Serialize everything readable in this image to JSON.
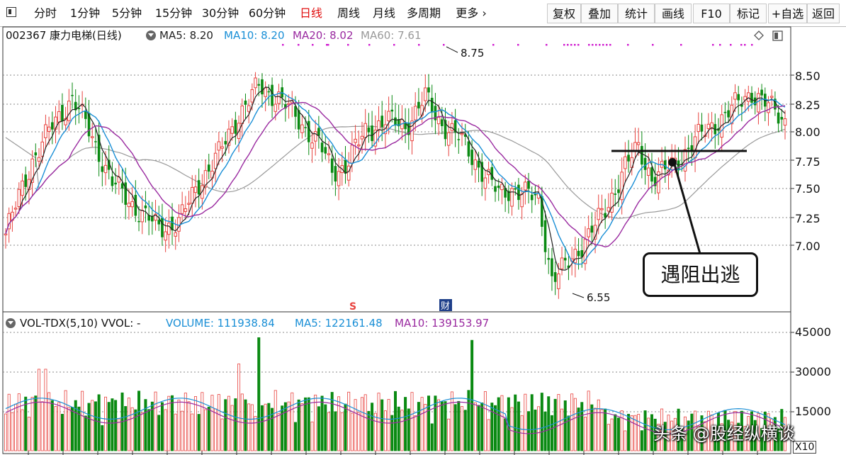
{
  "toolbar": {
    "periods": [
      "分时",
      "1分钟",
      "5分钟",
      "15分钟",
      "30分钟",
      "60分钟",
      "日线",
      "周线",
      "月线",
      "多周期",
      "更多"
    ],
    "active_period": "日线",
    "tools": [
      "复权",
      "叠加",
      "统计",
      "画线",
      "F10",
      "标记",
      "+自选",
      "返回"
    ]
  },
  "stock": {
    "code_name": "002367 康力电梯(日线)",
    "ma5": "MA5: 8.20",
    "ma10": "MA10: 8.20",
    "ma20": "MA20: 8.02",
    "ma60": "MA60: 7.61"
  },
  "volume_info": {
    "indicator": "VOL-TDX(5,10) VVOL: -",
    "volume": "VOLUME: 111938.84",
    "ma5": "MA5: 122161.48",
    "ma10": "MA10: 139153.97"
  },
  "price_axis": [
    "8.50",
    "8.25",
    "8.00",
    "7.75",
    "7.50",
    "7.25",
    "7.00"
  ],
  "volume_axis": [
    "45000",
    "30000",
    "15000"
  ],
  "volume_unit": "X10",
  "markers": {
    "high": "8.75",
    "low": "6.55",
    "s_mark": "S",
    "cai_mark": "财"
  },
  "annotation": "遇阻出逃",
  "watermark": "头条 @股经纵横谈",
  "colors": {
    "up": "#e8433f",
    "down": "#0a8a12",
    "ma5": "#222222",
    "ma10": "#1a8fd6",
    "ma20": "#9a2aa0",
    "ma60": "#999999",
    "active": "#e01010"
  },
  "chart_data": {
    "type": "candlestick",
    "title": "002367 康力电梯(日线)",
    "ylim": [
      6.5,
      8.75
    ],
    "series": [
      {
        "name": "price",
        "description": "daily candles, rising then falling to 6.55 then recovering to ~8.2"
      }
    ],
    "key_points": {
      "high": 8.75,
      "low": 6.55,
      "resistance": 7.83,
      "last_close": 8.2
    },
    "volume_ylim": [
      0,
      48000
    ]
  }
}
